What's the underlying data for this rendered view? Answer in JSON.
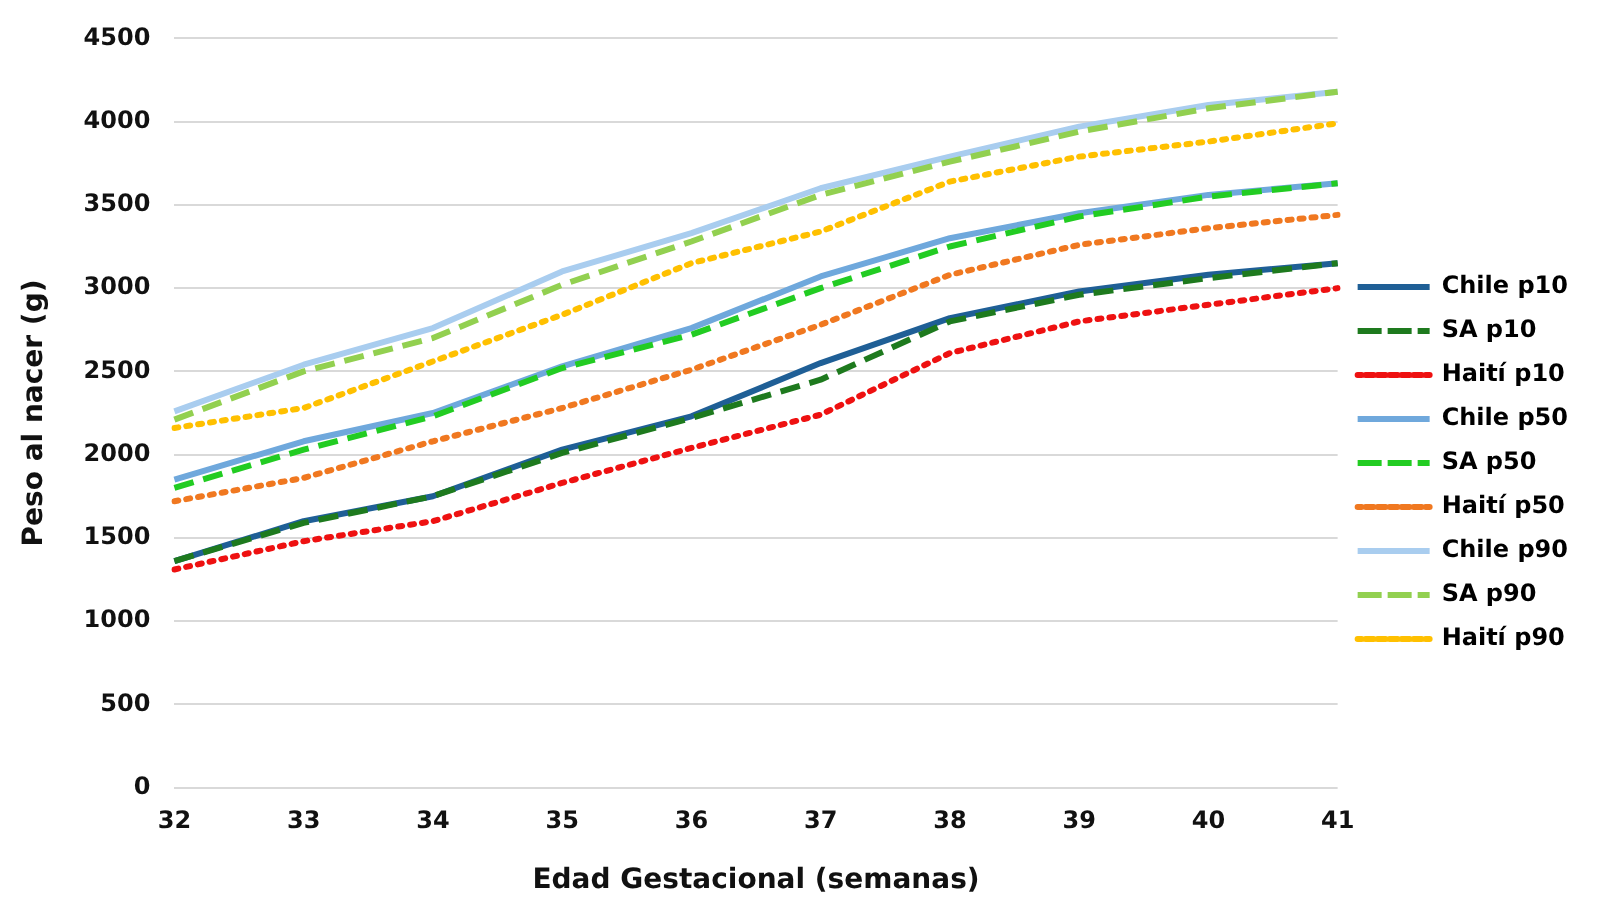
{
  "chart_data": {
    "type": "line",
    "xlabel": "Edad Gestacional (semanas)",
    "ylabel": "Peso al nacer (g)",
    "categories": [
      "32",
      "33",
      "34",
      "35",
      "36",
      "37",
      "38",
      "39",
      "40",
      "41"
    ],
    "ylim": [
      0,
      4500
    ],
    "yticks": [
      0,
      500,
      1000,
      1500,
      2000,
      2500,
      3000,
      3500,
      4000,
      4500
    ],
    "grid": "y",
    "legend": "right",
    "marker": "none",
    "series": [
      {
        "name": "Chile p10",
        "color": "#1f5f96",
        "line_style": "solid",
        "values": [
          1360,
          1600,
          1750,
          2030,
          2230,
          2550,
          2820,
          2980,
          3080,
          3150
        ]
      },
      {
        "name": "SA p10",
        "color": "#1e7a1e",
        "line_style": "dashed",
        "values": [
          1360,
          1590,
          1750,
          2010,
          2220,
          2450,
          2800,
          2960,
          3060,
          3150
        ]
      },
      {
        "name": "Haití p10",
        "color": "#ee1111",
        "line_style": "dotted",
        "values": [
          1310,
          1480,
          1600,
          1830,
          2040,
          2240,
          2610,
          2800,
          2900,
          3000
        ]
      },
      {
        "name": "Chile p50",
        "color": "#6fa8dc",
        "line_style": "solid",
        "values": [
          1850,
          2080,
          2250,
          2530,
          2760,
          3070,
          3300,
          3450,
          3560,
          3630
        ]
      },
      {
        "name": "SA p50",
        "color": "#22cc22",
        "line_style": "dashed",
        "values": [
          1800,
          2030,
          2230,
          2520,
          2720,
          3000,
          3250,
          3430,
          3550,
          3630
        ]
      },
      {
        "name": "Haití p50",
        "color": "#f07820",
        "line_style": "dotted",
        "values": [
          1720,
          1860,
          2080,
          2280,
          2510,
          2780,
          3080,
          3260,
          3360,
          3440
        ]
      },
      {
        "name": "Chile p90",
        "color": "#a9cdef",
        "line_style": "solid",
        "values": [
          2260,
          2540,
          2760,
          3100,
          3330,
          3600,
          3790,
          3970,
          4100,
          4180
        ]
      },
      {
        "name": "SA p90",
        "color": "#92d050",
        "line_style": "dashed",
        "values": [
          2210,
          2500,
          2700,
          3020,
          3280,
          3560,
          3760,
          3940,
          4080,
          4180
        ]
      },
      {
        "name": "Haití p90",
        "color": "#ffc000",
        "line_style": "dotted",
        "values": [
          2160,
          2280,
          2560,
          2840,
          3150,
          3340,
          3640,
          3790,
          3880,
          3990
        ]
      }
    ]
  }
}
